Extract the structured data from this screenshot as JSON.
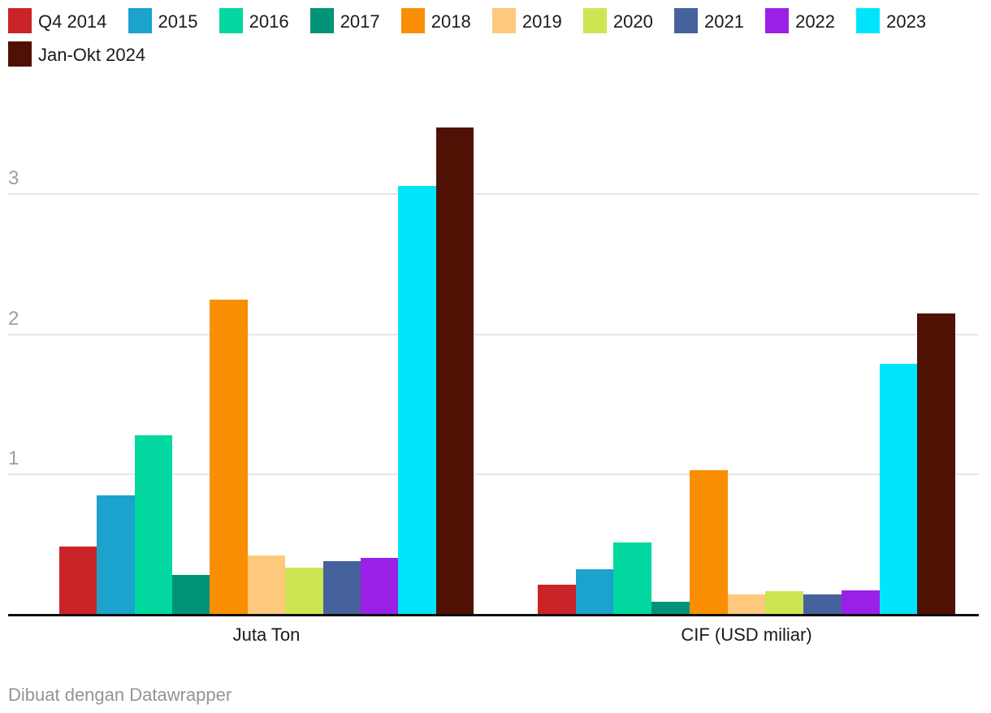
{
  "chart_data": {
    "type": "bar",
    "categories": [
      "Juta Ton",
      "CIF (USD miliar)"
    ],
    "series": [
      {
        "name": "Q4 2014",
        "color": "#ca2428",
        "values": [
          0.48,
          0.21
        ]
      },
      {
        "name": "2015",
        "color": "#1ba2cd",
        "values": [
          0.85,
          0.32
        ]
      },
      {
        "name": "2016",
        "color": "#02d8a0",
        "values": [
          1.28,
          0.51
        ]
      },
      {
        "name": "2017",
        "color": "#009378",
        "values": [
          0.28,
          0.09
        ]
      },
      {
        "name": "2018",
        "color": "#f98e03",
        "values": [
          2.25,
          1.03
        ]
      },
      {
        "name": "2019",
        "color": "#fec97c",
        "values": [
          0.42,
          0.14
        ]
      },
      {
        "name": "2020",
        "color": "#cee551",
        "values": [
          0.33,
          0.16
        ]
      },
      {
        "name": "2021",
        "color": "#46629d",
        "values": [
          0.38,
          0.14
        ]
      },
      {
        "name": "2022",
        "color": "#9b20e6",
        "values": [
          0.4,
          0.17
        ]
      },
      {
        "name": "2023",
        "color": "#00e5fb",
        "values": [
          3.06,
          1.79
        ]
      },
      {
        "name": "Jan-Okt 2024",
        "color": "#4f1103",
        "values": [
          3.48,
          2.15
        ]
      }
    ],
    "yticks": [
      1,
      2,
      3
    ],
    "ylim": [
      0,
      3.81
    ],
    "grid": true,
    "legend_position": "top",
    "axis_line_color": "#0c0c0c",
    "gridline_color": "#e7e7e7",
    "tick_label_color": "#9e9e9e"
  },
  "footer": {
    "credit": "Dibuat dengan Datawrapper"
  }
}
